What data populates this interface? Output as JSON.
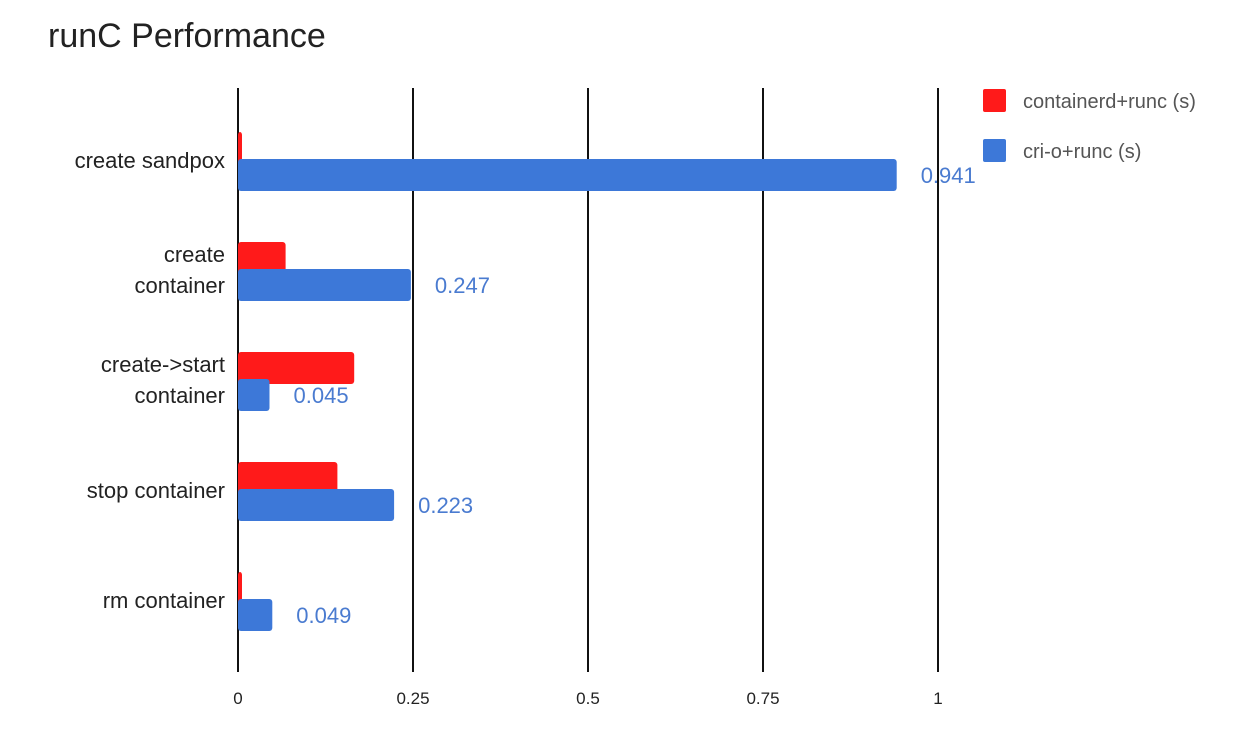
{
  "chart_data": {
    "type": "bar",
    "orientation": "horizontal",
    "title": "runC Performance",
    "xlabel": "",
    "ylabel": "",
    "categories": [
      [
        "create sandpox"
      ],
      [
        "create",
        "container"
      ],
      [
        "create->start",
        "container"
      ],
      [
        "stop container"
      ],
      [
        "rm container"
      ]
    ],
    "series": [
      {
        "name": "containerd+runc (s)",
        "color": "#ff1a1a",
        "values": [
          0.005,
          0.068,
          0.166,
          0.142,
          0.004
        ],
        "data_labels": [
          "",
          "",
          "",
          "",
          ""
        ]
      },
      {
        "name": "cri-o+runc (s)",
        "color": "#3d78d8",
        "values": [
          0.941,
          0.247,
          0.045,
          0.223,
          0.049
        ],
        "data_labels": [
          "0.941",
          "0.247",
          "0.045",
          "0.223",
          "0.049"
        ]
      }
    ],
    "xlim": [
      0,
      1
    ],
    "xticks": [
      0,
      0.25,
      0.5,
      0.75,
      1
    ],
    "xtick_labels": [
      "0",
      "0.25",
      "0.5",
      "0.75",
      "1"
    ],
    "grid": true,
    "legend_position": "top-right"
  }
}
